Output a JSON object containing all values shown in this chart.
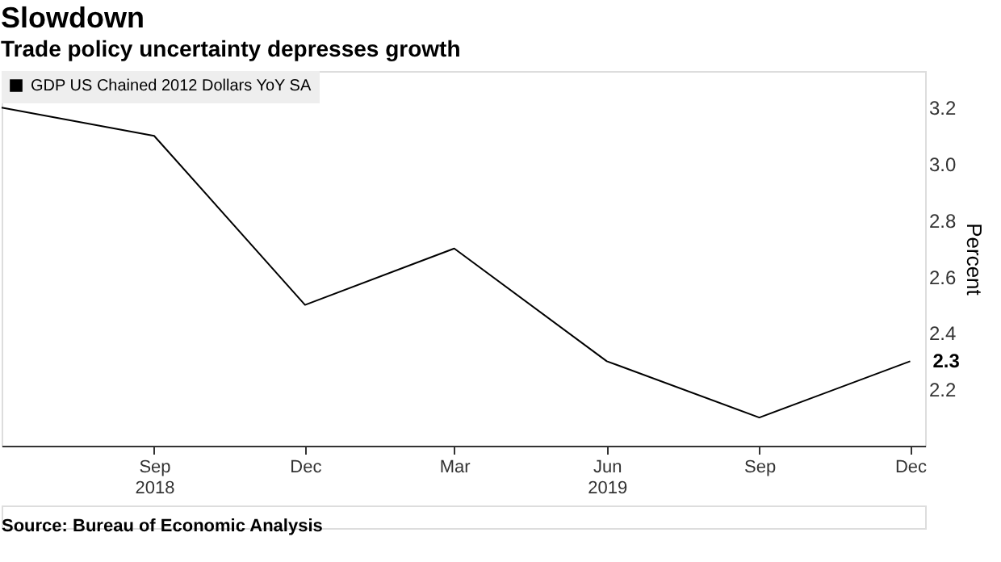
{
  "chart_data": {
    "type": "line",
    "title": "Slowdown",
    "subtitle": "Trade policy uncertainty depresses growth",
    "ylabel": "Percent",
    "x": [
      "2018-06",
      "2018-09",
      "2018-12",
      "2019-03",
      "2019-06",
      "2019-09",
      "2019-12"
    ],
    "series": [
      {
        "name": "GDP US Chained 2012 Dollars YoY SA",
        "color": "#000000",
        "values": [
          3.2,
          3.1,
          2.5,
          2.7,
          2.3,
          2.1,
          2.3
        ],
        "value_labels": [
          null,
          null,
          null,
          null,
          null,
          null,
          "2.3"
        ]
      }
    ],
    "xlim": [
      "2018-06",
      "2019-12-10"
    ],
    "xticks": [
      {
        "value": "2018-09",
        "label": "Sep\n2018"
      },
      {
        "value": "2018-12",
        "label": "Dec"
      },
      {
        "value": "2019-03",
        "label": "Mar"
      },
      {
        "value": "2019-06",
        "label": "Jun\n2019"
      },
      {
        "value": "2019-09",
        "label": "Sep"
      },
      {
        "value": "2019-12",
        "label": "Dec"
      }
    ],
    "ylim": [
      2.0,
      3.33
    ],
    "yticks": [
      2.2,
      2.4,
      2.6,
      2.8,
      {
        "value": 3.0,
        "label": "3.0"
      },
      3.2
    ],
    "grid": false,
    "legend": "top left",
    "marker": "none",
    "line_style": "solid",
    "annotations": [
      "Source: Bureau of Economic Analysis"
    ]
  }
}
